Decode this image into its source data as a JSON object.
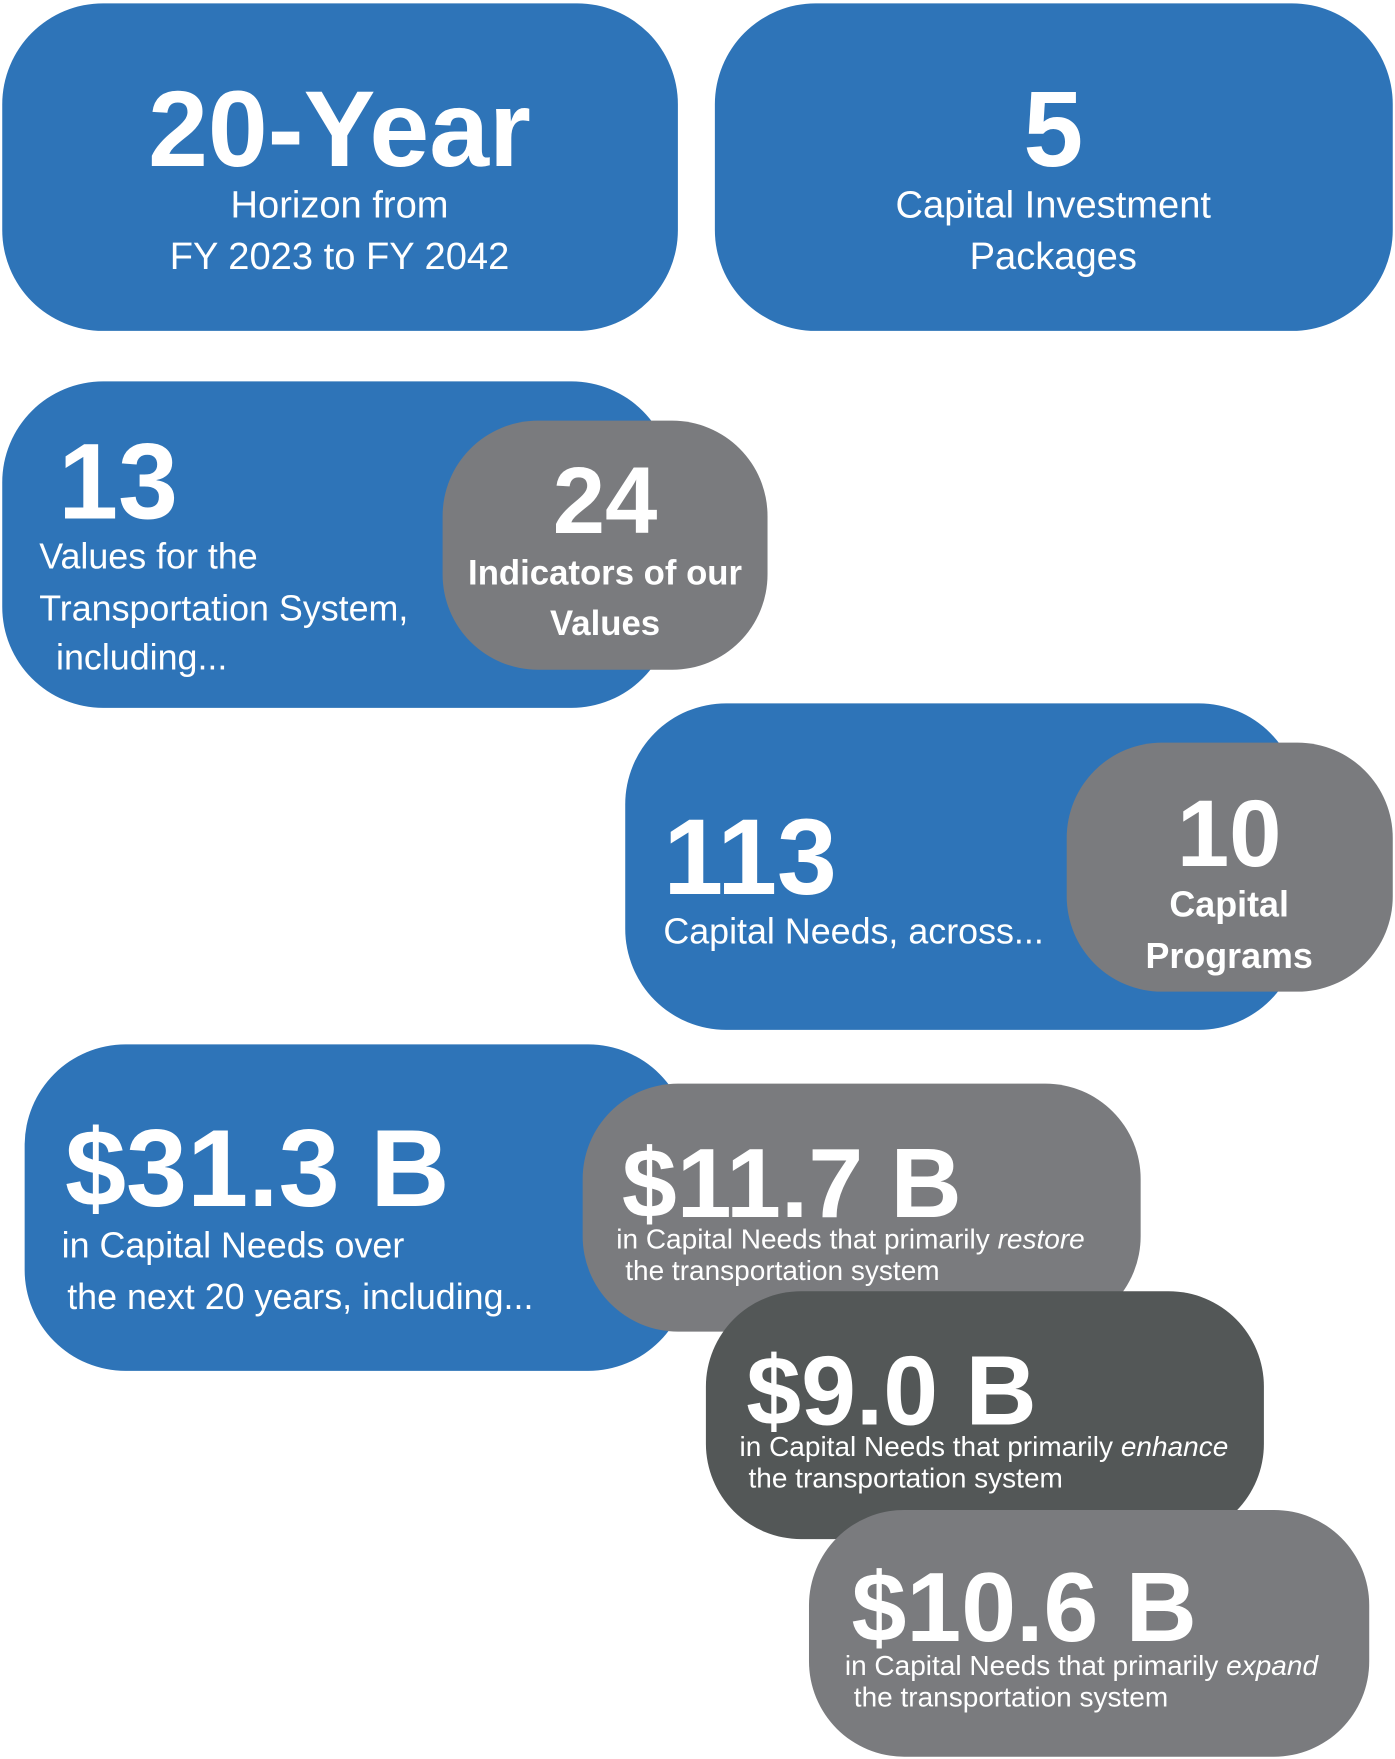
{
  "cards": [
    {
      "big": "20-Year",
      "lines": [
        "Horizon from",
        "FY 2023 to FY 2042"
      ]
    },
    {
      "big": "5",
      "lines": [
        "Capital Investment",
        "Packages"
      ]
    },
    {
      "big": "13",
      "lines": [
        "Values for the",
        "Transportation System,",
        "including..."
      ]
    },
    {
      "big": "24",
      "lines": [
        "Indicators of our",
        "Values"
      ]
    },
    {
      "big": "113",
      "lines": [
        "Capital Needs, across..."
      ]
    },
    {
      "big": "10",
      "lines": [
        "Capital",
        "Programs"
      ]
    },
    {
      "big": "$31.3 B",
      "lines": [
        "in Capital Needs over",
        "the next 20 years, including..."
      ]
    },
    {
      "big": "$11.7 B",
      "lead": "in Capital Needs that primarily",
      "emphasis": "restore",
      "rest": "the transportation system"
    },
    {
      "big": "$9.0 B",
      "lead": "in Capital Needs that primarily",
      "emphasis": "enhance",
      "rest": "the transportation system"
    },
    {
      "big": "$10.6 B",
      "lead": "in Capital Needs that primarily",
      "emphasis": "expand",
      "rest": "the transportation system"
    }
  ]
}
